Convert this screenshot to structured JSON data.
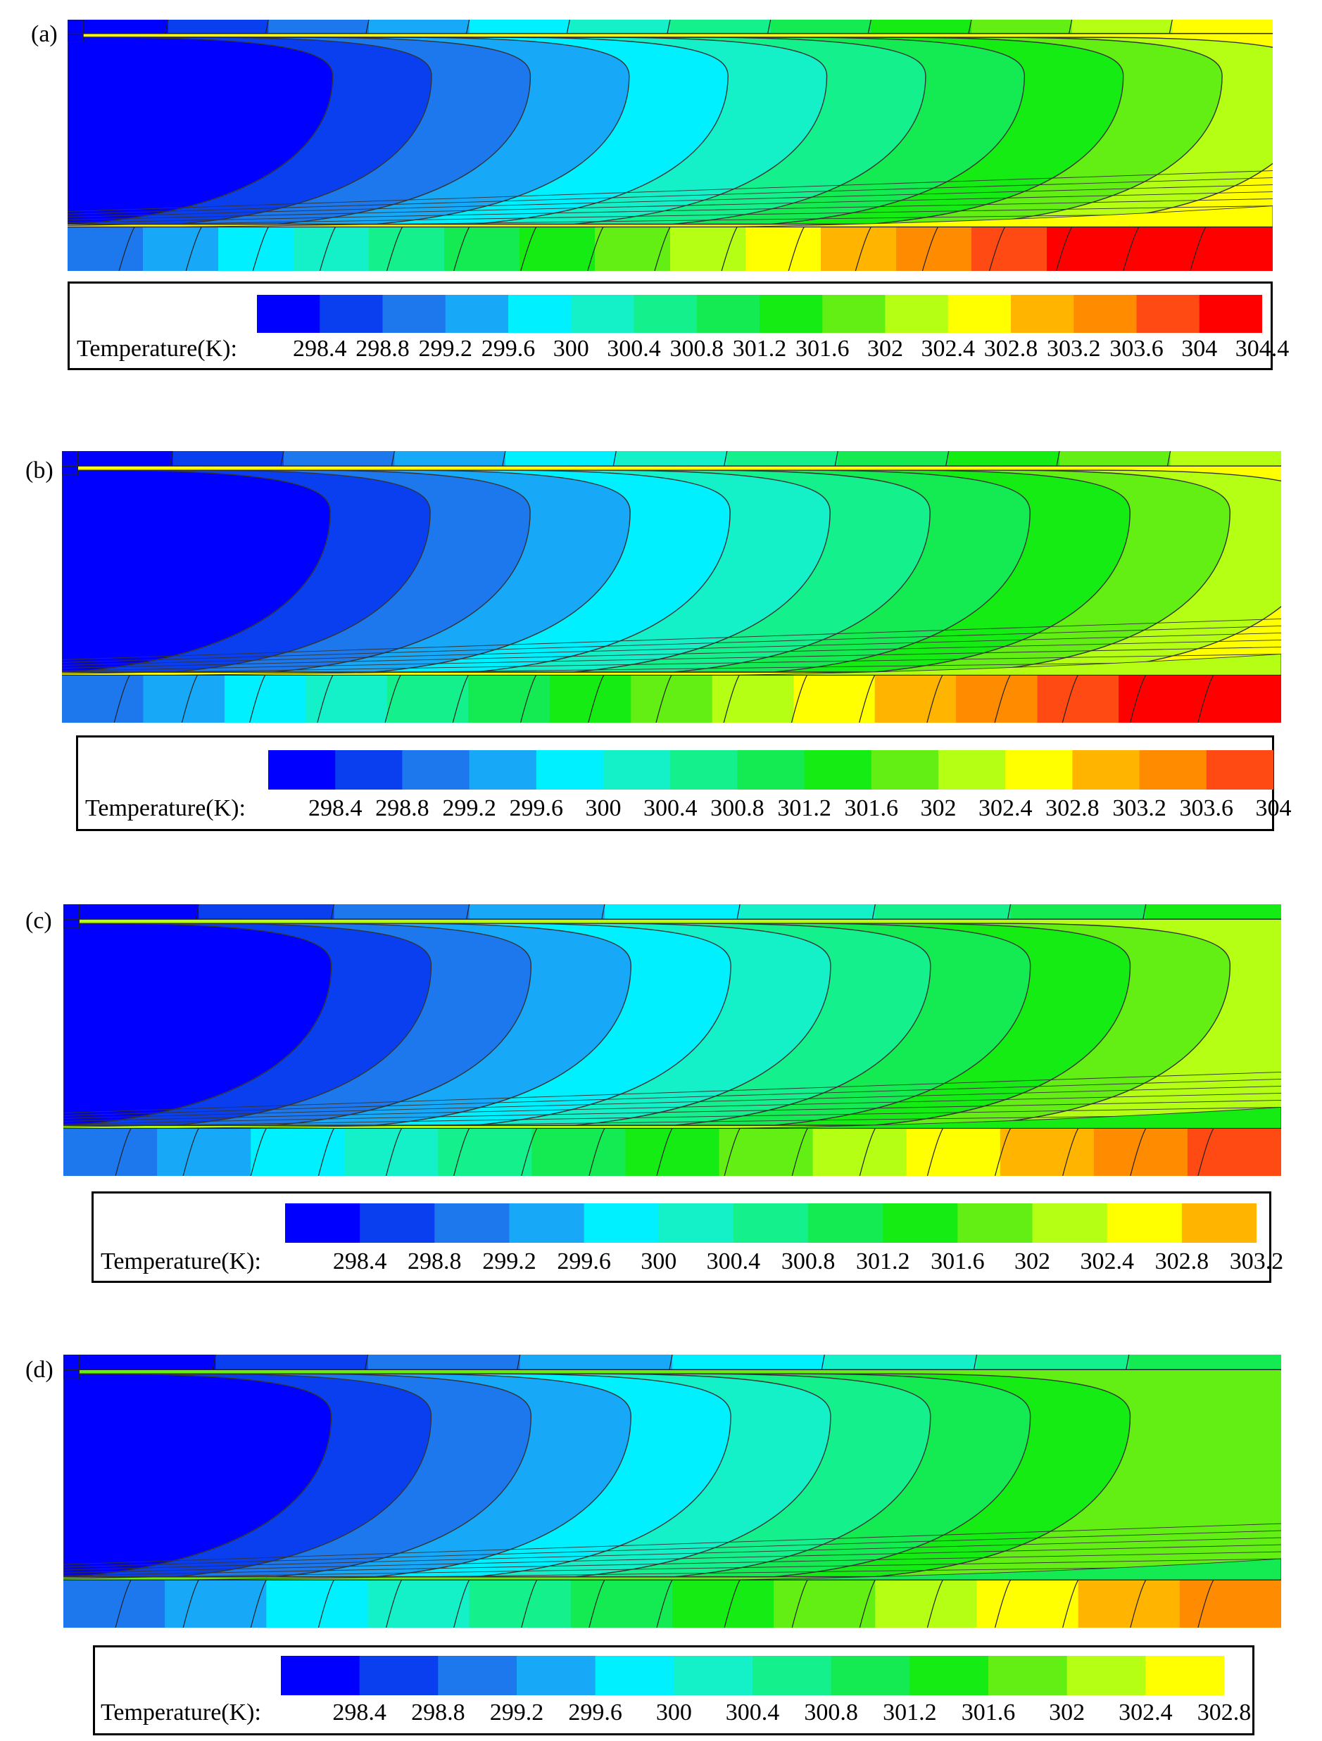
{
  "palette": [
    "#0000ff",
    "#0a3ff0",
    "#1d78ee",
    "#17a8f7",
    "#00f0ff",
    "#14f0c8",
    "#14f08c",
    "#14eb52",
    "#14ec14",
    "#64ef14",
    "#b4ff14",
    "#ffff00",
    "#ffb400",
    "#ff8c00",
    "#ff4a14",
    "#ff0000"
  ],
  "chart_data": [
    {
      "type": "heatmap",
      "panel_label": "(a)",
      "colorbar_label": "Temperature(K):",
      "tick_labels": [
        "298.4",
        "298.8",
        "299.2",
        "299.6",
        "300",
        "300.4",
        "300.8",
        "301.2",
        "301.6",
        "302",
        "302.4",
        "302.8",
        "303.2",
        "303.6",
        "304",
        "304.4"
      ],
      "levels": [
        298.4,
        298.8,
        299.2,
        299.6,
        300,
        300.4,
        300.8,
        301.2,
        301.6,
        302,
        302.4,
        302.8,
        303.2,
        303.6,
        304,
        304.4
      ]
    },
    {
      "type": "heatmap",
      "panel_label": "(b)",
      "colorbar_label": "Temperature(K):",
      "tick_labels": [
        "298.4",
        "298.8",
        "299.2",
        "299.6",
        "300",
        "300.4",
        "300.8",
        "301.2",
        "301.6",
        "302",
        "302.4",
        "302.8",
        "303.2",
        "303.6",
        "304"
      ],
      "levels": [
        298.4,
        298.8,
        299.2,
        299.6,
        300,
        300.4,
        300.8,
        301.2,
        301.6,
        302,
        302.4,
        302.8,
        303.2,
        303.6,
        304
      ]
    },
    {
      "type": "heatmap",
      "panel_label": "(c)",
      "colorbar_label": "Temperature(K):",
      "tick_labels": [
        "298.4",
        "298.8",
        "299.2",
        "299.6",
        "300",
        "300.4",
        "300.8",
        "301.2",
        "301.6",
        "302",
        "302.4",
        "302.8",
        "303.2"
      ],
      "levels": [
        298.4,
        298.8,
        299.2,
        299.6,
        300,
        300.4,
        300.8,
        301.2,
        301.6,
        302,
        302.4,
        302.8,
        303.2
      ]
    },
    {
      "type": "heatmap",
      "panel_label": "(d)",
      "colorbar_label": "Temperature(K):",
      "tick_labels": [
        "298.4",
        "298.8",
        "299.2",
        "299.6",
        "300",
        "300.4",
        "300.8",
        "301.2",
        "301.6",
        "302",
        "302.4",
        "302.8"
      ],
      "levels": [
        298.4,
        298.8,
        299.2,
        299.6,
        300,
        300.4,
        300.8,
        301.2,
        301.6,
        302,
        302.4,
        302.8
      ]
    }
  ]
}
